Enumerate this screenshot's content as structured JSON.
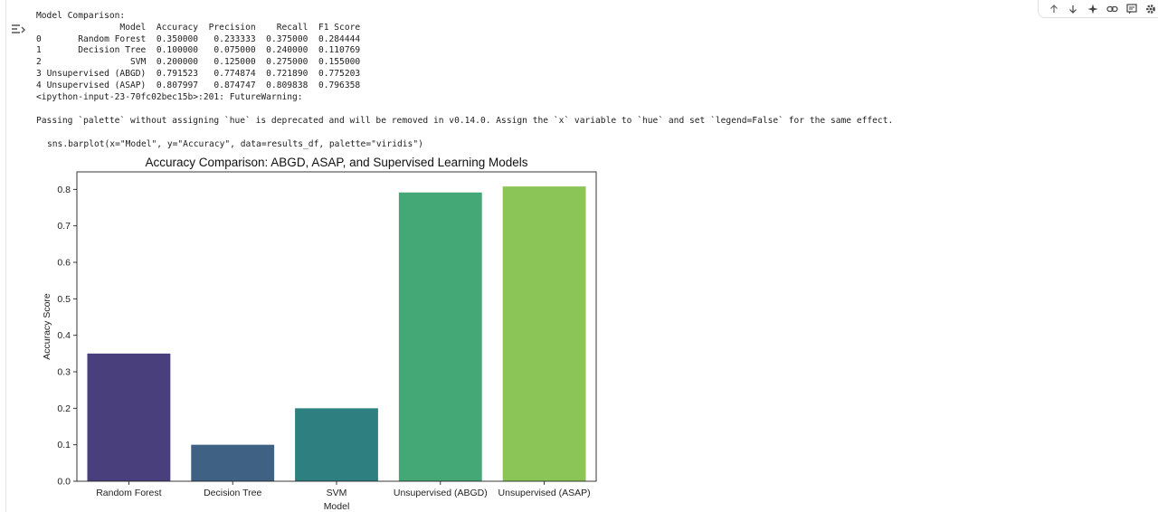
{
  "output": {
    "heading": "Model Comparison:",
    "table": {
      "columns": [
        "Model",
        "Accuracy",
        "Precision",
        "Recall",
        "F1 Score"
      ],
      "rows": [
        {
          "index": "0",
          "model": "Random Forest",
          "accuracy": "0.350000",
          "precision": "0.233333",
          "recall": "0.375000",
          "f1": "0.284444"
        },
        {
          "index": "1",
          "model": "Decision Tree",
          "accuracy": "0.100000",
          "precision": "0.075000",
          "recall": "0.240000",
          "f1": "0.110769"
        },
        {
          "index": "2",
          "model": "SVM",
          "accuracy": "0.200000",
          "precision": "0.125000",
          "recall": "0.275000",
          "f1": "0.155000"
        },
        {
          "index": "3",
          "model": "Unsupervised (ABGD)",
          "accuracy": "0.791523",
          "precision": "0.774874",
          "recall": "0.721890",
          "f1": "0.775203"
        },
        {
          "index": "4",
          "model": "Unsupervised (ASAP)",
          "accuracy": "0.807997",
          "precision": "0.874747",
          "recall": "0.809838",
          "f1": "0.796358"
        }
      ]
    },
    "warning_source": "<ipython-input-23-70fc02bec15b>:201: FutureWarning:",
    "warning_message": "Passing `palette` without assigning `hue` is deprecated and will be removed in v0.14.0. Assign the `x` variable to `hue` and set `legend=False` for the same effect.",
    "code_line": "sns.barplot(x=\"Model\", y=\"Accuracy\", data=results_df, palette=\"viridis\")"
  },
  "icons": {
    "gutter": "output-toggle-icon",
    "toolbar": [
      "arrow-up-icon",
      "arrow-down-icon",
      "sparkle-icon",
      "link-icon",
      "comment-icon",
      "gear-icon"
    ]
  },
  "chart_data": {
    "type": "bar",
    "title": "Accuracy Comparison: ABGD, ASAP, and Supervised Learning Models",
    "xlabel": "Model",
    "ylabel": "Accuracy Score",
    "categories": [
      "Random Forest",
      "Decision Tree",
      "SVM",
      "Unsupervised (ABGD)",
      "Unsupervised (ASAP)"
    ],
    "values": [
      0.35,
      0.1,
      0.2,
      0.791523,
      0.807997
    ],
    "colors": [
      "#4a3f7d",
      "#3e6184",
      "#2e8080",
      "#44a876",
      "#8bc557"
    ],
    "ylim": [
      0,
      0.848
    ],
    "yticks": [
      0.0,
      0.1,
      0.2,
      0.3,
      0.4,
      0.5,
      0.6,
      0.7,
      0.8
    ],
    "ytick_labels": [
      "0.0",
      "0.1",
      "0.2",
      "0.3",
      "0.4",
      "0.5",
      "0.6",
      "0.7",
      "0.8"
    ],
    "grid": false,
    "legend": "none"
  }
}
